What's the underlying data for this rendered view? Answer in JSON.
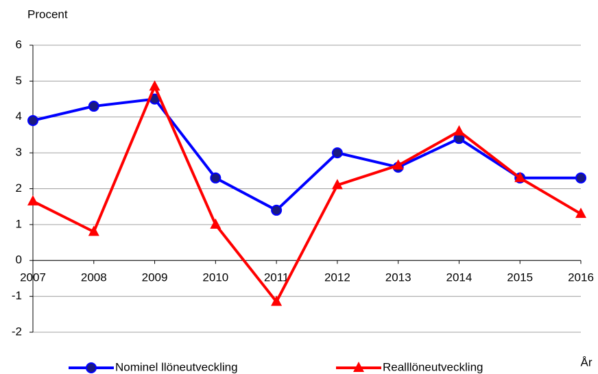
{
  "chart_data": {
    "type": "line",
    "y_axis_label": "Procent",
    "x_axis_label": "År",
    "x": [
      2007,
      2008,
      2009,
      2010,
      2011,
      2012,
      2013,
      2014,
      2015,
      2016
    ],
    "xlim": [
      2007,
      2016
    ],
    "xticks": [
      2007,
      2008,
      2009,
      2010,
      2011,
      2012,
      2013,
      2014,
      2015,
      2016
    ],
    "ylim": [
      -2,
      6
    ],
    "yticks": [
      -2,
      -1,
      0,
      1,
      2,
      3,
      4,
      5,
      6
    ],
    "grid": true,
    "legend": "bottom",
    "series": [
      {
        "name": "Nominel llöneutveckling",
        "color": "#0000ff",
        "marker": "circle",
        "values": [
          3.9,
          4.3,
          4.5,
          2.3,
          1.4,
          3.0,
          2.6,
          3.4,
          2.3,
          2.3
        ]
      },
      {
        "name": "Realllöneutveckling",
        "color": "#ff0000",
        "marker": "triangle",
        "values": [
          1.65,
          0.8,
          4.85,
          1.0,
          -1.15,
          2.1,
          2.65,
          3.6,
          2.3,
          1.3
        ]
      }
    ]
  }
}
